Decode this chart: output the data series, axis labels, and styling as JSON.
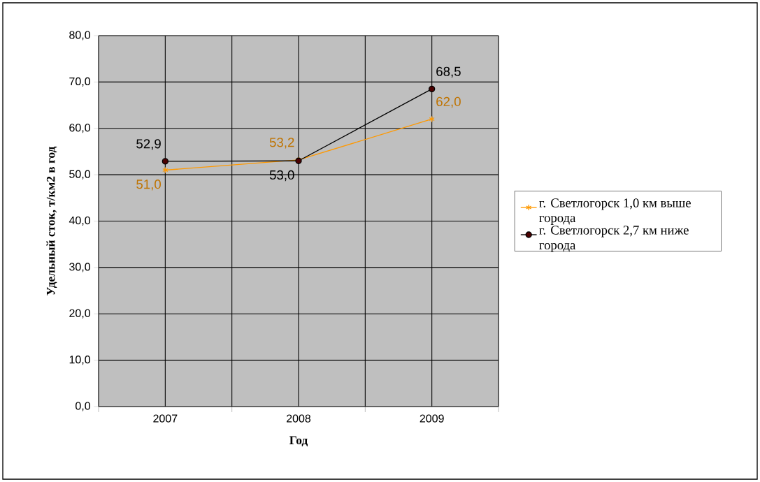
{
  "chart_data": {
    "type": "line",
    "xlabel": "Год",
    "ylabel": "Удельный сток, т/км2 в год",
    "categories": [
      "2007",
      "2008",
      "2009"
    ],
    "series": [
      {
        "name": "г. Светлогорск 1,0 км выше города",
        "color": "#ff9900",
        "marker": "cross",
        "values": [
          51.0,
          53.2,
          62.0
        ],
        "value_labels": [
          "51,0",
          "53,2",
          "62,0"
        ]
      },
      {
        "name": "г. Светлогорск 2,7 км ниже города",
        "color": "#000000",
        "marker": "circle",
        "values": [
          52.9,
          53.0,
          68.5
        ],
        "value_labels": [
          "52,9",
          "53,0",
          "68,5"
        ]
      }
    ],
    "ylim": [
      0,
      80
    ],
    "yticks": [
      {
        "value": 0,
        "label": "0,0"
      },
      {
        "value": 10,
        "label": "10,0"
      },
      {
        "value": 20,
        "label": "20,0"
      },
      {
        "value": 30,
        "label": "30,0"
      },
      {
        "value": 40,
        "label": "40,0"
      },
      {
        "value": 50,
        "label": "50,0"
      },
      {
        "value": 60,
        "label": "60,0"
      },
      {
        "value": 70,
        "label": "70,0"
      },
      {
        "value": 80,
        "label": "80,0"
      }
    ],
    "grid": true,
    "legend": "right"
  }
}
